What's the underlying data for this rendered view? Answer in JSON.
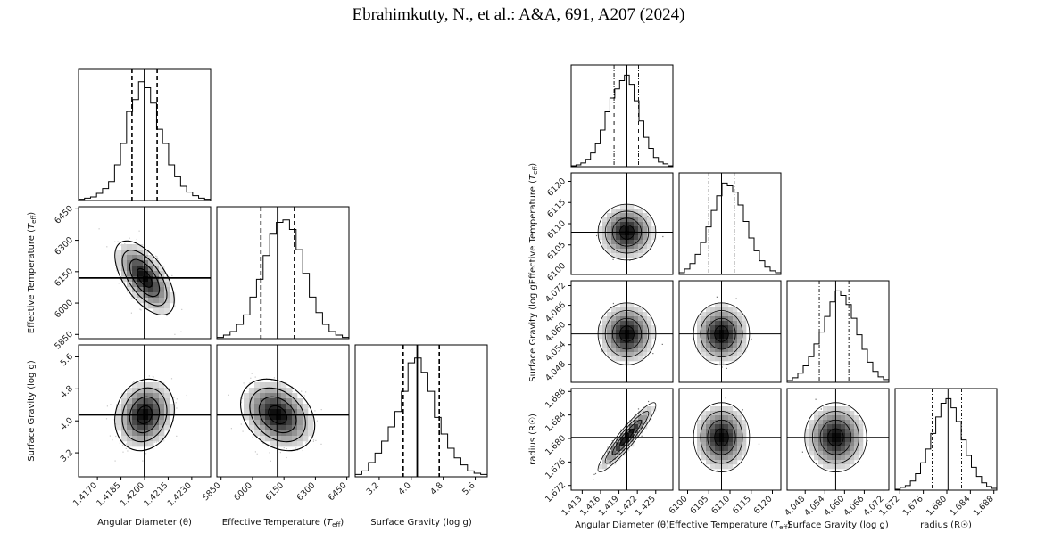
{
  "header": {
    "citation": "Ebrahimkutty, N., et al.: A&A, 691, A207  (2024)"
  },
  "chart_data": [
    {
      "type": "corner",
      "panel": "left",
      "parameters": [
        {
          "name": "theta",
          "label": "Angular Diameter (θ)",
          "ylabel": "",
          "range": [
            1.4158,
            1.4242
          ],
          "ticks": [
            1.417,
            1.4185,
            1.42,
            1.4215,
            1.423
          ],
          "tick_labels": [
            "1.4170",
            "1.4185",
            "1.4200",
            "1.4215",
            "1.4230"
          ],
          "median": 1.42,
          "q_low": 1.4192,
          "q_high": 1.4208,
          "sigma": 0.0008,
          "hist": [
            0.01,
            0.02,
            0.03,
            0.06,
            0.1,
            0.16,
            0.3,
            0.48,
            0.75,
            0.85,
            1.0,
            0.95,
            0.82,
            0.6,
            0.48,
            0.3,
            0.2,
            0.12,
            0.07,
            0.04,
            0.02,
            0.01
          ]
        },
        {
          "name": "teff",
          "label": "Effective Temperature (T_eff)",
          "ylabel": "Effective Temperature (T_eff)",
          "range": [
            5830,
            6460
          ],
          "ticks": [
            5850,
            6000,
            6150,
            6300,
            6450
          ],
          "tick_labels": [
            "5850",
            "6000",
            "6150",
            "6300",
            "6450"
          ],
          "median": 6120,
          "q_low": 6040,
          "q_high": 6200,
          "sigma": 75,
          "hist": [
            0.01,
            0.03,
            0.06,
            0.12,
            0.2,
            0.35,
            0.5,
            0.7,
            0.88,
            0.98,
            1.0,
            0.92,
            0.75,
            0.55,
            0.35,
            0.22,
            0.12,
            0.06,
            0.03,
            0.01
          ]
        },
        {
          "name": "logg",
          "label": "Surface Gravity (log g)",
          "ylabel": "Surface Gravity (log g)",
          "range": [
            2.6,
            5.9
          ],
          "ticks": [
            3.2,
            4.0,
            4.8,
            5.6
          ],
          "tick_labels": [
            "3.2",
            "4.0",
            "4.8",
            "5.6"
          ],
          "median": 4.15,
          "q_low": 3.8,
          "q_high": 4.7,
          "sigma": 0.38,
          "hist": [
            0.02,
            0.05,
            0.12,
            0.2,
            0.3,
            0.42,
            0.55,
            0.72,
            0.96,
            1.0,
            0.88,
            0.72,
            0.5,
            0.36,
            0.24,
            0.16,
            0.1,
            0.05,
            0.03,
            0.02
          ]
        }
      ],
      "correlations": {
        "1-0": -0.6,
        "2-0": 0.15,
        "2-1": -0.3
      }
    },
    {
      "type": "corner",
      "panel": "right",
      "parameters": [
        {
          "name": "theta",
          "label": "Angular Diameter (θ)",
          "ylabel": "",
          "range": [
            1.4112,
            1.4278
          ],
          "ticks": [
            1.413,
            1.416,
            1.419,
            1.422,
            1.425
          ],
          "tick_labels": [
            "1.413",
            "1.416",
            "1.419",
            "1.422",
            "1.425"
          ],
          "median": 1.4203,
          "q_low": 1.4182,
          "q_high": 1.4222,
          "sigma": 0.002,
          "hist": [
            0.01,
            0.02,
            0.04,
            0.08,
            0.15,
            0.25,
            0.4,
            0.6,
            0.75,
            0.85,
            0.94,
            1.0,
            0.9,
            0.72,
            0.5,
            0.32,
            0.2,
            0.1,
            0.05,
            0.03,
            0.01
          ]
        },
        {
          "name": "teff",
          "label": "Effective Temperature (T_eff)",
          "ylabel": "Effective Temperature (T_eff)",
          "range": [
            6098,
            6122
          ],
          "ticks": [
            6100,
            6105,
            6110,
            6115,
            6120
          ],
          "tick_labels": [
            "6100",
            "6105",
            "6110",
            "6115",
            "6120"
          ],
          "median": 6108,
          "q_low": 6105,
          "q_high": 6111,
          "sigma": 2.8,
          "hist": [
            0.02,
            0.06,
            0.12,
            0.22,
            0.35,
            0.52,
            0.7,
            0.86,
            1.0,
            0.97,
            0.9,
            0.76,
            0.58,
            0.4,
            0.26,
            0.15,
            0.08,
            0.04,
            0.02
          ]
        },
        {
          "name": "logg",
          "label": "Surface Gravity (log g)",
          "ylabel": "Surface Gravity (log g)",
          "range": [
            4.0425,
            4.0735
          ],
          "ticks": [
            4.048,
            4.054,
            4.06,
            4.066,
            4.072
          ],
          "tick_labels": [
            "4.048",
            "4.054",
            "4.060",
            "4.066",
            "4.072"
          ],
          "median": 4.0573,
          "q_low": 4.0523,
          "q_high": 4.0613,
          "sigma": 0.004,
          "hist": [
            0.02,
            0.05,
            0.1,
            0.18,
            0.28,
            0.42,
            0.55,
            0.72,
            0.88,
            1.0,
            0.95,
            0.85,
            0.7,
            0.52,
            0.36,
            0.22,
            0.12,
            0.06,
            0.03
          ]
        },
        {
          "name": "radius",
          "label": "radius (R☉)",
          "ylabel": "radius (R☉)",
          "range": [
            1.6712,
            1.6885
          ],
          "ticks": [
            1.672,
            1.676,
            1.68,
            1.684,
            1.688
          ],
          "tick_labels": [
            "1.672",
            "1.676",
            "1.680",
            "1.684",
            "1.688"
          ],
          "median": 1.6802,
          "q_low": 1.6775,
          "q_high": 1.6825,
          "sigma": 0.0025,
          "hist": [
            0.01,
            0.03,
            0.05,
            0.1,
            0.18,
            0.3,
            0.45,
            0.62,
            0.8,
            0.95,
            1.0,
            0.9,
            0.75,
            0.55,
            0.38,
            0.25,
            0.15,
            0.08,
            0.04,
            0.02
          ]
        }
      ],
      "correlations": {
        "1-0": 0.0,
        "2-0": 0.0,
        "2-1": 0.0,
        "3-0": 0.93,
        "3-1": 0.0,
        "3-2": 0.0
      }
    }
  ]
}
